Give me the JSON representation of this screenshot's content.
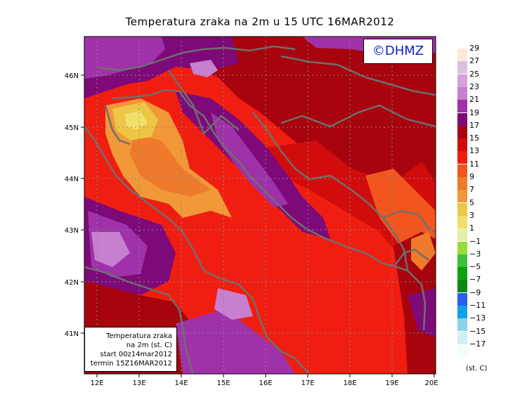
{
  "title": "Temperatura zraka na 2m u 15 UTC 16MAR2012",
  "copyright": "©DHMZ",
  "info_box": {
    "line1": "Temperatura zraka",
    "line2": "na 2m (st. C)",
    "line3": "start 00z14mar2012",
    "line4": "termin 15Z16MAR2012"
  },
  "axes": {
    "lat_labels": [
      "46N",
      "45N",
      "44N",
      "43N",
      "42N",
      "41N"
    ],
    "lon_labels": [
      "12E",
      "13E",
      "14E",
      "15E",
      "16E",
      "17E",
      "18E",
      "19E",
      "20E"
    ]
  },
  "legend": {
    "unit": "(st. C)",
    "levels": [
      {
        "label": "29",
        "color": "#fbe9dc"
      },
      {
        "label": "27",
        "color": "#d9c3dc"
      },
      {
        "label": "25",
        "color": "#d6a1d8"
      },
      {
        "label": "23",
        "color": "#c77fd0"
      },
      {
        "label": "21",
        "color": "#9f32a8"
      },
      {
        "label": "19",
        "color": "#7d0a78"
      },
      {
        "label": "17",
        "color": "#a7040e"
      },
      {
        "label": "15",
        "color": "#d10c0c"
      },
      {
        "label": "13",
        "color": "#f01e10"
      },
      {
        "label": "11",
        "color": "#f2561e"
      },
      {
        "label": "9",
        "color": "#ee7a2c"
      },
      {
        "label": "7",
        "color": "#f19838"
      },
      {
        "label": "5",
        "color": "#edc645"
      },
      {
        "label": "3",
        "color": "#efe06a"
      },
      {
        "label": "1",
        "color": "#e4f0a6"
      },
      {
        "label": "−1",
        "color": "#97dc3a"
      },
      {
        "label": "−3",
        "color": "#3cc23a"
      },
      {
        "label": "−5",
        "color": "#10a00e"
      },
      {
        "label": "−7",
        "color": "#0a8810"
      },
      {
        "label": "−9",
        "color": "#2a5ef0"
      },
      {
        "label": "−11",
        "color": "#10a2e8"
      },
      {
        "label": "−13",
        "color": "#8ed2ea"
      },
      {
        "label": "−15",
        "color": "#cff0f4"
      },
      {
        "label": "−17",
        "color": "#f4fdfd"
      }
    ]
  }
}
